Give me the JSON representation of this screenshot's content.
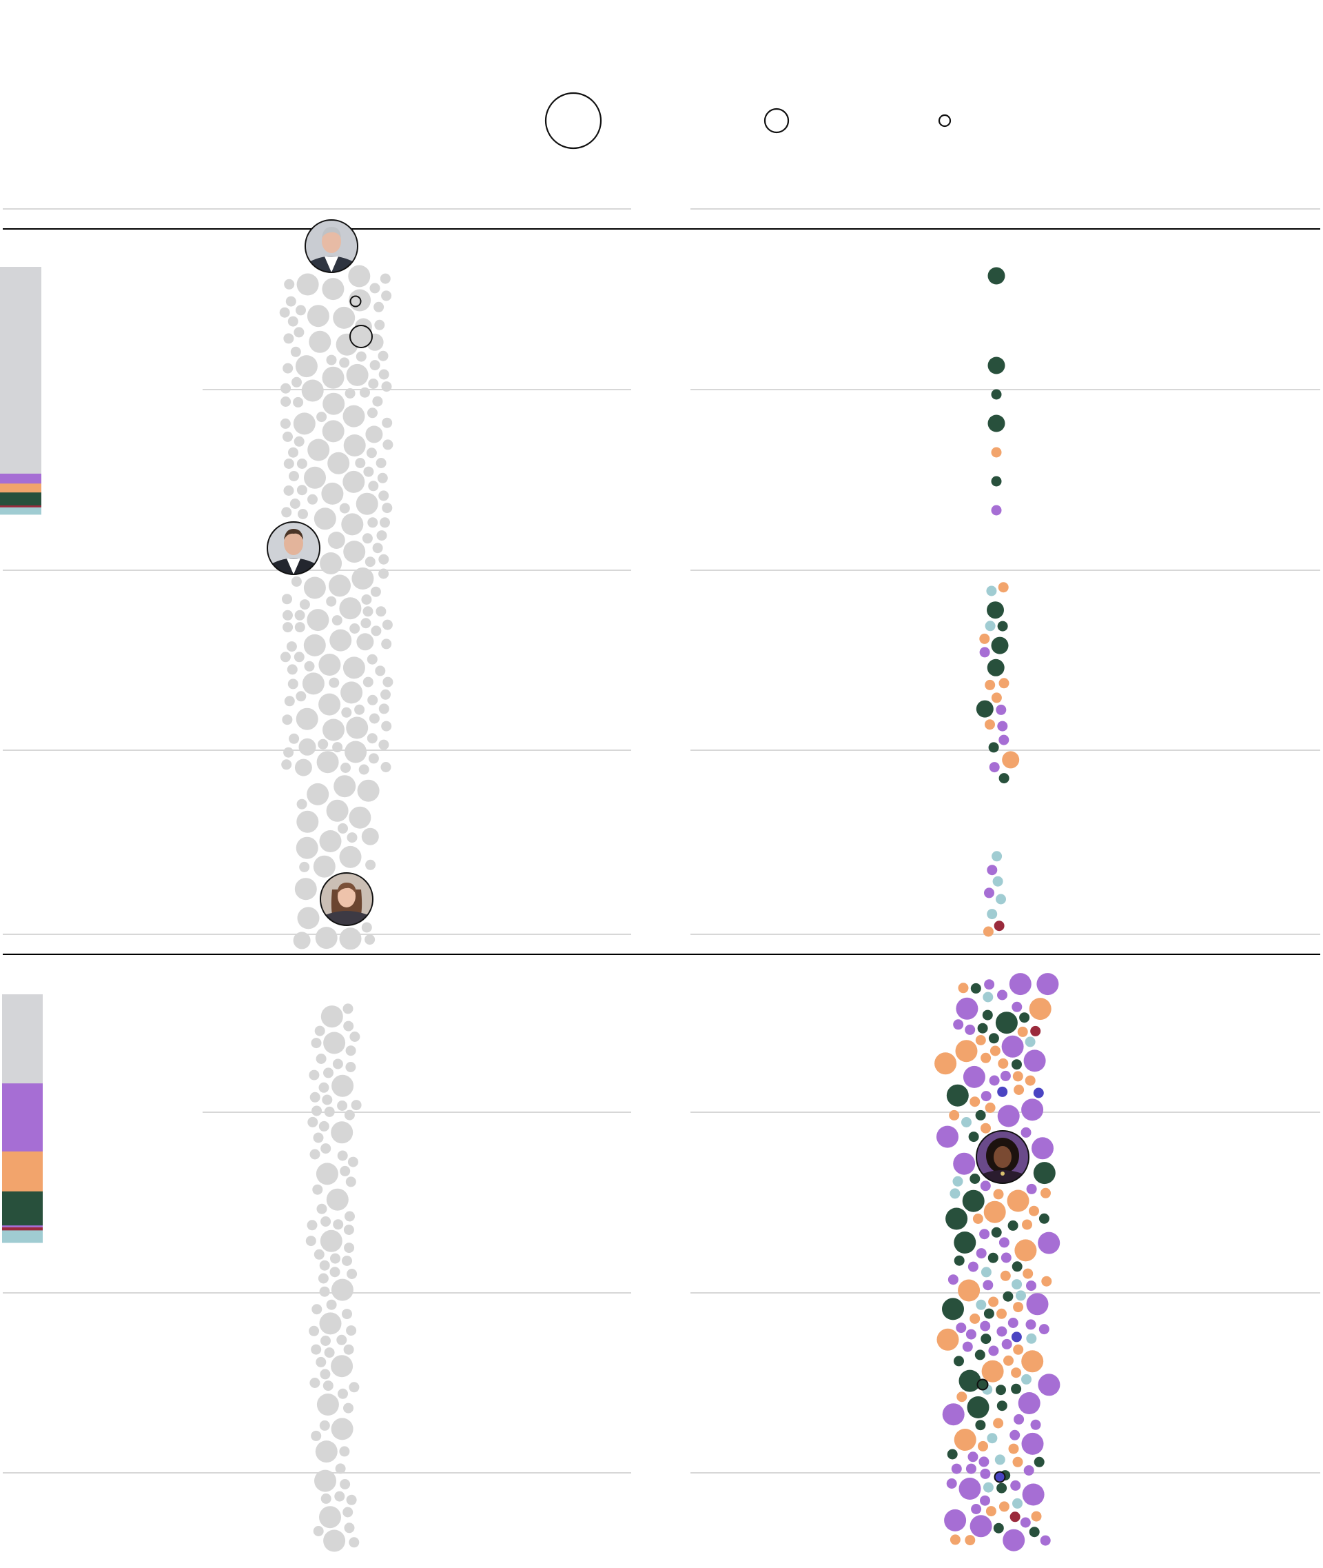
{
  "colors": {
    "empty": "#d4d5d8",
    "gray_dot": "#d6d6d6",
    "purple": "#a66ed4",
    "orange": "#f2a46c",
    "dark_green": "#28503c",
    "light_blue": "#a0ccd2",
    "red": "#9a2a3c",
    "blue": "#4a44c2",
    "rule_dark": "#000000",
    "rule_light": "#d7d7d7"
  },
  "legend": {
    "labels": [
      "",
      "",
      ""
    ],
    "sizes": [
      "large",
      "medium",
      "small"
    ]
  },
  "chart_data": {
    "type": "scatter",
    "title": "",
    "panels": [
      {
        "id": "panel-1",
        "portraits": [
          "portrait-top",
          "portrait-middle",
          "portrait-bottom"
        ],
        "bar_segments": [
          {
            "color": "empty",
            "value": 0.833
          },
          {
            "color": "purple",
            "value": 0.04
          },
          {
            "color": "orange",
            "value": 0.036
          },
          {
            "color": "dark_green",
            "value": 0.052
          },
          {
            "color": "red",
            "value": 0.008
          },
          {
            "color": "light_blue",
            "value": 0.028
          }
        ],
        "left_counts": {
          "large": 58,
          "medium": 10,
          "small": 230
        },
        "right_dots": [
          {
            "color": "dark_green",
            "size": "medium",
            "group": 1
          },
          {
            "color": "dark_green",
            "size": "medium",
            "group": 2
          },
          {
            "color": "dark_green",
            "size": "small",
            "group": 2
          },
          {
            "color": "dark_green",
            "size": "medium",
            "group": 2
          },
          {
            "color": "orange",
            "size": "small",
            "group": 2
          },
          {
            "color": "dark_green",
            "size": "small",
            "group": 2
          },
          {
            "color": "purple",
            "size": "small",
            "group": 2
          },
          {
            "color": "orange",
            "size": "small",
            "group": 3
          },
          {
            "color": "dark_green",
            "size": "medium",
            "group": 3
          },
          {
            "color": "orange",
            "size": "small",
            "group": 3
          },
          {
            "color": "orange",
            "size": "small",
            "group": 3
          },
          {
            "color": "dark_green",
            "size": "medium",
            "group": 3
          },
          {
            "color": "orange",
            "size": "small",
            "group": 3
          },
          {
            "color": "dark_green",
            "size": "medium",
            "group": 3
          },
          {
            "color": "purple",
            "size": "small",
            "group": 3
          },
          {
            "color": "purple",
            "size": "small",
            "group": 3
          },
          {
            "color": "dark_green",
            "size": "small",
            "group": 3
          },
          {
            "color": "purple",
            "size": "small",
            "group": 3
          },
          {
            "color": "dark_green",
            "size": "small",
            "group": 3
          },
          {
            "color": "light_blue",
            "size": "small",
            "group": 3
          },
          {
            "color": "orange",
            "size": "small",
            "group": 3
          },
          {
            "color": "orange",
            "size": "medium",
            "group": 3
          },
          {
            "color": "light_blue",
            "size": "small",
            "group": 3
          },
          {
            "color": "dark_green",
            "size": "medium",
            "group": 3
          },
          {
            "color": "purple",
            "size": "small",
            "group": 3
          },
          {
            "color": "dark_green",
            "size": "small",
            "group": 3
          },
          {
            "color": "purple",
            "size": "small",
            "group": 3
          },
          {
            "color": "orange",
            "size": "small",
            "group": 3
          },
          {
            "color": "red",
            "size": "small",
            "group": 4
          },
          {
            "color": "light_blue",
            "size": "small",
            "group": 4
          },
          {
            "color": "light_blue",
            "size": "small",
            "group": 4
          },
          {
            "color": "purple",
            "size": "small",
            "group": 4
          },
          {
            "color": "light_blue",
            "size": "small",
            "group": 4
          },
          {
            "color": "light_blue",
            "size": "small",
            "group": 4
          },
          {
            "color": "purple",
            "size": "small",
            "group": 4
          },
          {
            "color": "orange",
            "size": "small",
            "group": 4
          }
        ]
      },
      {
        "id": "panel-2",
        "portraits": [
          "portrait-right"
        ],
        "bar_segments": [
          {
            "color": "empty",
            "value": 0.359
          },
          {
            "color": "purple",
            "value": 0.274
          },
          {
            "color": "orange",
            "value": 0.161
          },
          {
            "color": "dark_green",
            "value": 0.137
          },
          {
            "color": "purple",
            "value": 0.008
          },
          {
            "color": "red",
            "value": 0.012
          },
          {
            "color": "light_blue",
            "value": 0.049
          }
        ],
        "left_counts": {
          "large": 16,
          "small": 74
        },
        "right_counts": {
          "purple_large": 22,
          "purple_small": 44,
          "orange_large": 12,
          "orange_small": 38,
          "dark_green_large": 9,
          "dark_green_small": 30,
          "light_blue_small": 16,
          "red_small": 2,
          "blue_small": 3
        }
      }
    ]
  }
}
